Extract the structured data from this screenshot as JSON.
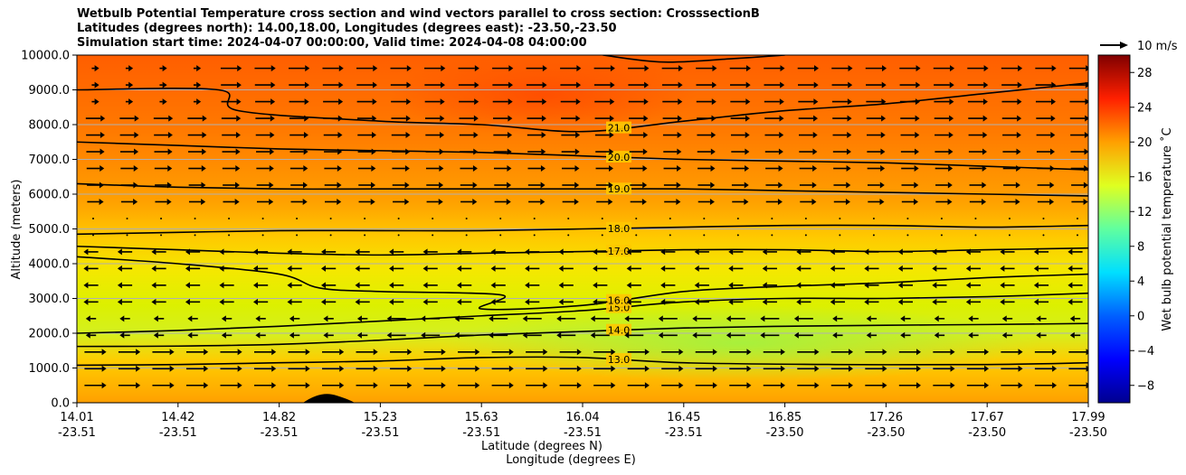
{
  "chart_data": {
    "type": "heatmap",
    "title_lines": [
      "Wetbulb Potential Temperature cross section and wind vectors parallel to cross section: CrosssectionB",
      "Latitudes (degrees north): 14.00,18.00, Longitudes (degrees east): -23.50,-23.50",
      "Simulation start time: 2024-04-07 00:00:00, Valid time: 2024-04-08 04:00:00"
    ],
    "ylabel": "Altitude (meters)",
    "xlabel_lat": "Latitude (degrees N)",
    "xlabel_lon": "Longitude (degrees E)",
    "ylim": [
      0,
      10000
    ],
    "yticks": [
      "0.0",
      "1000.0",
      "2000.0",
      "3000.0",
      "4000.0",
      "5000.0",
      "6000.0",
      "7000.0",
      "8000.0",
      "9000.0",
      "10000.0"
    ],
    "xticks": [
      {
        "lat": "14.01",
        "lon": "-23.51"
      },
      {
        "lat": "14.42",
        "lon": "-23.51"
      },
      {
        "lat": "14.82",
        "lon": "-23.51"
      },
      {
        "lat": "15.23",
        "lon": "-23.51"
      },
      {
        "lat": "15.63",
        "lon": "-23.51"
      },
      {
        "lat": "16.04",
        "lon": "-23.51"
      },
      {
        "lat": "16.45",
        "lon": "-23.51"
      },
      {
        "lat": "16.85",
        "lon": "-23.50"
      },
      {
        "lat": "17.26",
        "lon": "-23.50"
      },
      {
        "lat": "17.67",
        "lon": "-23.50"
      },
      {
        "lat": "17.99",
        "lon": "-23.50"
      }
    ],
    "grid": true,
    "colorbar": {
      "label": "Wet bulb potential temperature ˚C",
      "range": [
        -10,
        30
      ],
      "ticks": [
        "−8",
        "−4",
        "0",
        "4",
        "8",
        "12",
        "16",
        "20",
        "24",
        "28"
      ],
      "tick_values": [
        -8,
        -4,
        0,
        4,
        8,
        12,
        16,
        20,
        24,
        28
      ]
    },
    "wind_key_label": "10 m/s",
    "contours": [
      {
        "level": "13.0",
        "label": "13.0",
        "points": [
          [
            0.0,
            1080
          ],
          [
            0.1,
            1100
          ],
          [
            0.2,
            1150
          ],
          [
            0.3,
            1200
          ],
          [
            0.4,
            1300
          ],
          [
            0.5,
            1300
          ],
          [
            0.6,
            1150
          ],
          [
            0.75,
            1100
          ],
          [
            0.9,
            1100
          ],
          [
            1.0,
            1150
          ]
        ]
      },
      {
        "level": "14.0",
        "label": "14.0",
        "points": [
          [
            0.0,
            1620
          ],
          [
            0.1,
            1630
          ],
          [
            0.2,
            1680
          ],
          [
            0.3,
            1800
          ],
          [
            0.4,
            1950
          ],
          [
            0.5,
            2050
          ],
          [
            0.6,
            2150
          ],
          [
            0.7,
            2200
          ],
          [
            0.8,
            2230
          ],
          [
            0.9,
            2250
          ],
          [
            1.0,
            2280
          ]
        ]
      },
      {
        "level": "15.0",
        "label": "15.0",
        "points": [
          [
            0.0,
            2000
          ],
          [
            0.1,
            2080
          ],
          [
            0.2,
            2200
          ],
          [
            0.3,
            2350
          ],
          [
            0.4,
            2500
          ],
          [
            0.5,
            2650
          ],
          [
            0.6,
            2900
          ],
          [
            0.7,
            3000
          ],
          [
            0.8,
            3000
          ],
          [
            0.9,
            3050
          ],
          [
            1.0,
            3150
          ]
        ]
      },
      {
        "level": "16.0",
        "label": "16.0",
        "points": [
          [
            0.0,
            4200
          ],
          [
            0.1,
            4000
          ],
          [
            0.2,
            3700
          ],
          [
            0.24,
            3300
          ],
          [
            0.3,
            3200
          ],
          [
            0.42,
            3100
          ],
          [
            0.4,
            2700
          ],
          [
            0.5,
            2800
          ],
          [
            0.6,
            3200
          ],
          [
            0.7,
            3350
          ],
          [
            0.8,
            3450
          ],
          [
            0.9,
            3600
          ],
          [
            1.0,
            3700
          ]
        ]
      },
      {
        "level": "17.0",
        "label": "17.0",
        "points": [
          [
            0.0,
            4500
          ],
          [
            0.1,
            4400
          ],
          [
            0.2,
            4300
          ],
          [
            0.3,
            4250
          ],
          [
            0.4,
            4300
          ],
          [
            0.5,
            4350
          ],
          [
            0.6,
            4400
          ],
          [
            0.7,
            4400
          ],
          [
            0.8,
            4350
          ],
          [
            0.9,
            4400
          ],
          [
            1.0,
            4450
          ]
        ]
      },
      {
        "level": "18.0",
        "label": "18.0",
        "points": [
          [
            0.0,
            4850
          ],
          [
            0.1,
            4900
          ],
          [
            0.2,
            4950
          ],
          [
            0.3,
            4950
          ],
          [
            0.4,
            4950
          ],
          [
            0.5,
            5000
          ],
          [
            0.6,
            5050
          ],
          [
            0.7,
            5100
          ],
          [
            0.8,
            5100
          ],
          [
            0.9,
            5050
          ],
          [
            1.0,
            5100
          ]
        ]
      },
      {
        "level": "19.0",
        "label": "19.0",
        "points": [
          [
            0.0,
            6300
          ],
          [
            0.1,
            6200
          ],
          [
            0.2,
            6150
          ],
          [
            0.3,
            6150
          ],
          [
            0.4,
            6150
          ],
          [
            0.5,
            6150
          ],
          [
            0.6,
            6150
          ],
          [
            0.7,
            6100
          ],
          [
            0.8,
            6050
          ],
          [
            0.9,
            6000
          ],
          [
            1.0,
            5950
          ]
        ]
      },
      {
        "level": "20.0",
        "label": "20.0",
        "points": [
          [
            0.0,
            7500
          ],
          [
            0.1,
            7400
          ],
          [
            0.2,
            7300
          ],
          [
            0.3,
            7250
          ],
          [
            0.4,
            7200
          ],
          [
            0.5,
            7100
          ],
          [
            0.6,
            7000
          ],
          [
            0.7,
            6950
          ],
          [
            0.8,
            6900
          ],
          [
            0.9,
            6800
          ],
          [
            1.0,
            6700
          ]
        ]
      },
      {
        "level": "21.0",
        "label": "21.0",
        "points": [
          [
            0.0,
            9000
          ],
          [
            0.14,
            9000
          ],
          [
            0.16,
            8400
          ],
          [
            0.3,
            8100
          ],
          [
            0.4,
            8000
          ],
          [
            0.5,
            7800
          ],
          [
            0.6,
            8100
          ],
          [
            0.7,
            8400
          ],
          [
            0.8,
            8600
          ],
          [
            0.9,
            8900
          ],
          [
            1.0,
            9200
          ]
        ]
      },
      {
        "level": "21.0",
        "label": "",
        "points": [
          [
            0.52,
            10000
          ],
          [
            0.58,
            9800
          ],
          [
            0.65,
            9900
          ],
          [
            0.7,
            10000
          ]
        ]
      }
    ]
  }
}
